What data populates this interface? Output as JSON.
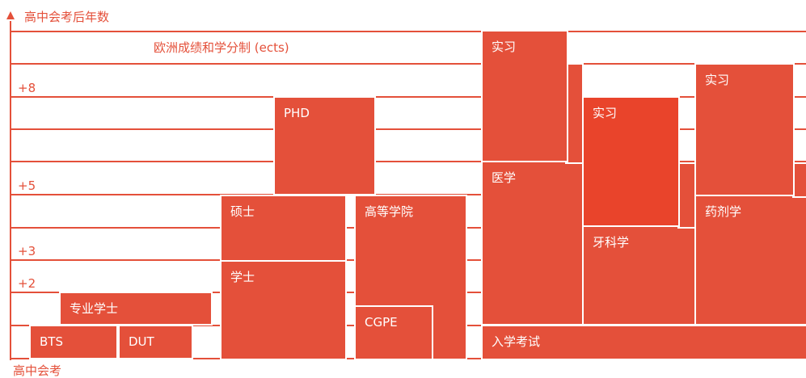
{
  "axis": {
    "top_label": "高中会考后年数",
    "bottom_label": "高中会考",
    "ticks": [
      "+8",
      "+5",
      "+3",
      "+2"
    ]
  },
  "ects_label": "欧洲成绩和学分制 (ects)",
  "programs": {
    "bts": "BTS",
    "dut": "DUT",
    "licence_pro": "专业学士",
    "licence": "学士",
    "master": "硕士",
    "phd": "PHD",
    "grandes_ecoles": "高等学院",
    "cgpe": "CGPE",
    "entrance_exam": "入学考试",
    "medicine": "医学",
    "internship_medicine": "实习",
    "dentistry": "牙科学",
    "internship_dentistry": "实习",
    "pharmacy": "药剂学",
    "internship_pharmacy": "实习"
  },
  "colors": {
    "accent": "#e4503a",
    "accent_dark": "#e9442b",
    "background": "#ffffff"
  }
}
